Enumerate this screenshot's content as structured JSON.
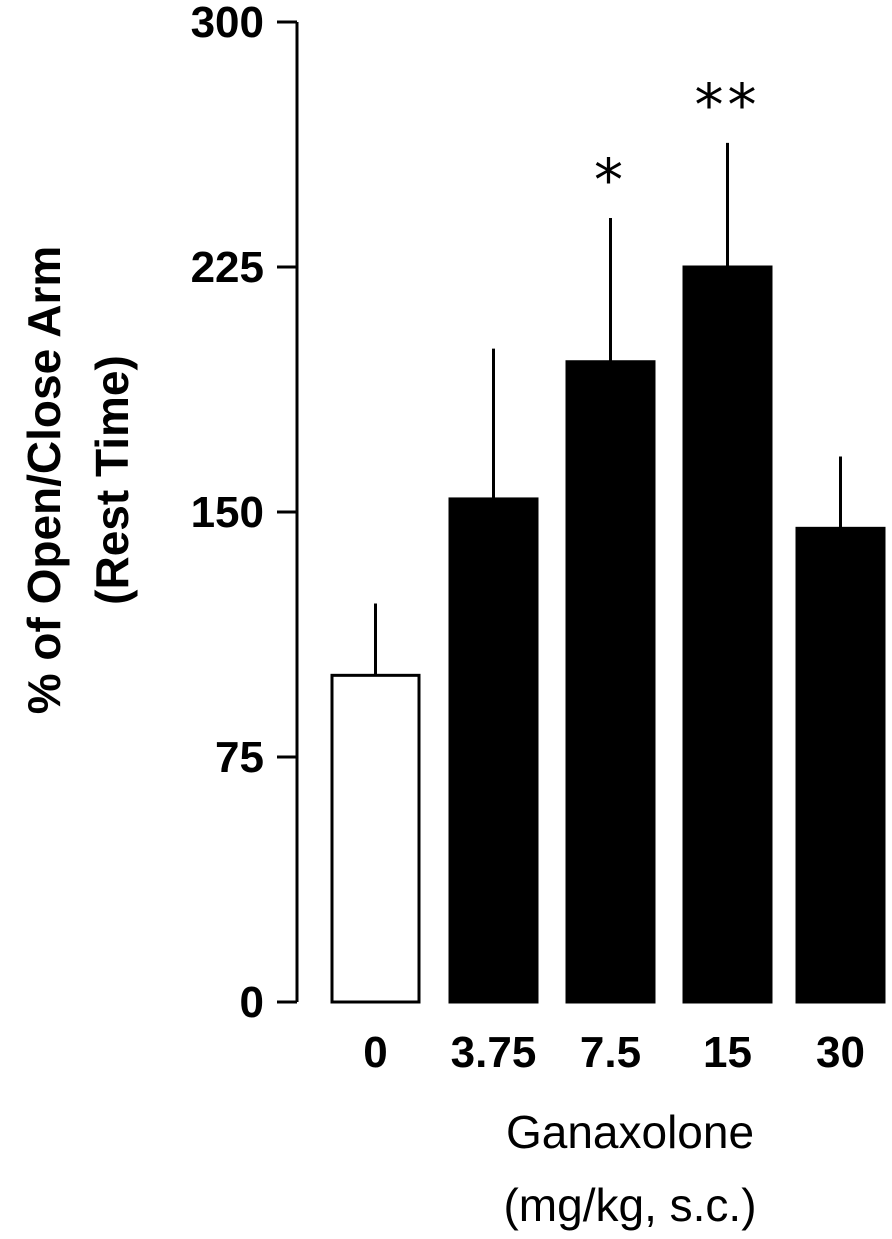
{
  "chart_data": {
    "type": "bar",
    "ylabel": [
      "% of Open/Close Arm",
      "(Rest Time)"
    ],
    "xlabel": [
      "Ganaxolone",
      "(mg/kg, s.c.)"
    ],
    "ylim": [
      0,
      300
    ],
    "yticks": [
      0,
      75,
      150,
      225,
      300
    ],
    "ytick_labels": [
      "0",
      "75",
      "150",
      "225",
      "300"
    ],
    "categories": [
      "0",
      "3.75",
      "7.5",
      "15",
      "30"
    ],
    "values": [
      100,
      154,
      196,
      225,
      145
    ],
    "errors": [
      22,
      46,
      44,
      38,
      22
    ],
    "significance": [
      "",
      "",
      "*",
      "**",
      ""
    ],
    "bar_colors": [
      "#ffffff",
      "#000000",
      "#000000",
      "#000000",
      "#000000"
    ],
    "grid": false,
    "legend": "none"
  }
}
